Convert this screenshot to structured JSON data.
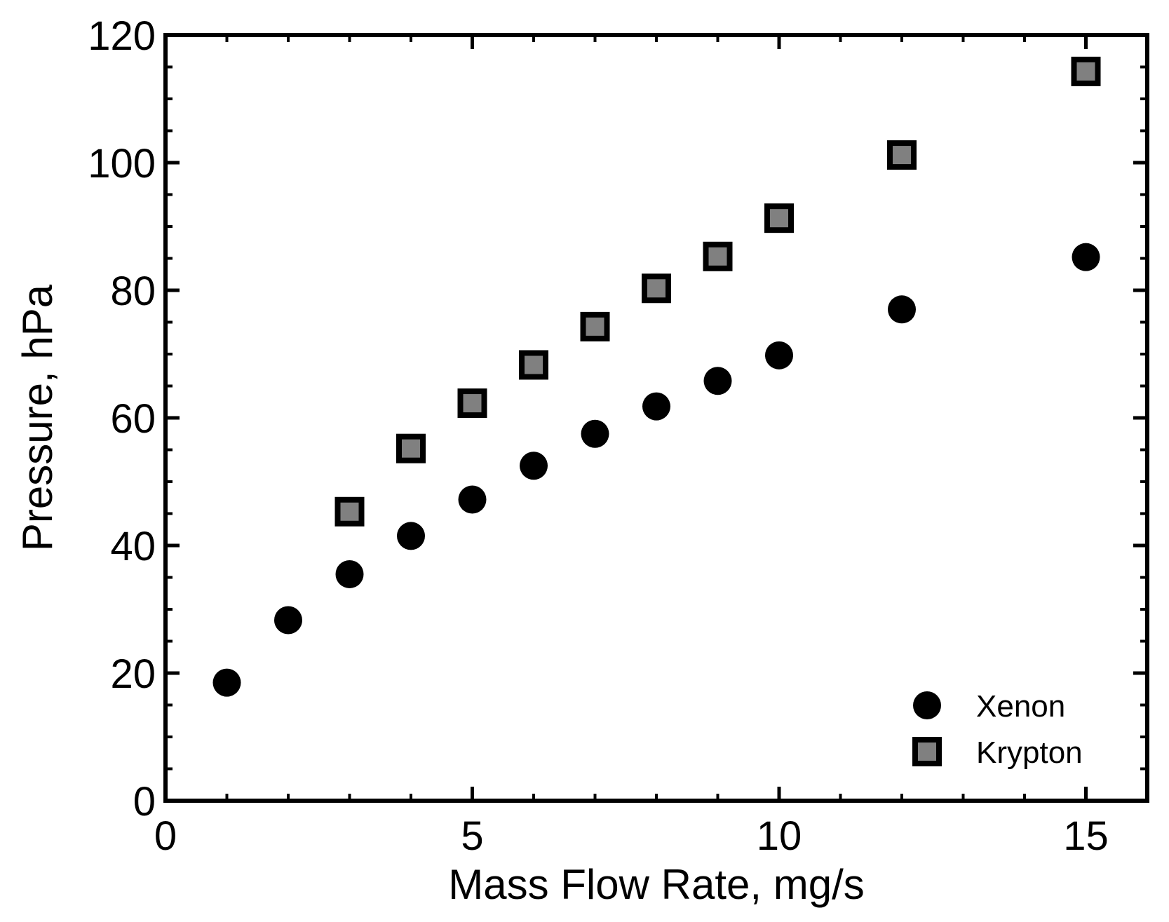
{
  "chart_data": {
    "type": "scatter",
    "title": "",
    "xlabel": "Mass Flow Rate, mg/s",
    "ylabel": "Pressure, hPa",
    "xlim": [
      0,
      16
    ],
    "ylim": [
      0,
      120
    ],
    "xticks": [
      0,
      5,
      10,
      15
    ],
    "yticks": [
      0,
      20,
      40,
      60,
      80,
      100,
      120
    ],
    "grid": false,
    "legend_position": "bottom-right",
    "series": [
      {
        "name": "Xenon",
        "marker": "circle",
        "color": "#000000",
        "x": [
          1,
          2,
          3,
          4,
          5,
          6,
          7,
          8,
          9,
          10,
          12,
          15
        ],
        "y": [
          18.5,
          28.3,
          35.5,
          41.5,
          47.2,
          52.5,
          57.5,
          61.8,
          65.8,
          69.8,
          77.0,
          85.2
        ]
      },
      {
        "name": "Krypton",
        "marker": "square",
        "color": "#808080",
        "edgecolor": "#000000",
        "x": [
          3,
          4,
          5,
          6,
          7,
          8,
          9,
          10,
          12,
          15
        ],
        "y": [
          45.3,
          55.2,
          62.3,
          68.3,
          74.3,
          80.3,
          85.3,
          91.3,
          101.2,
          114.3
        ]
      }
    ]
  }
}
